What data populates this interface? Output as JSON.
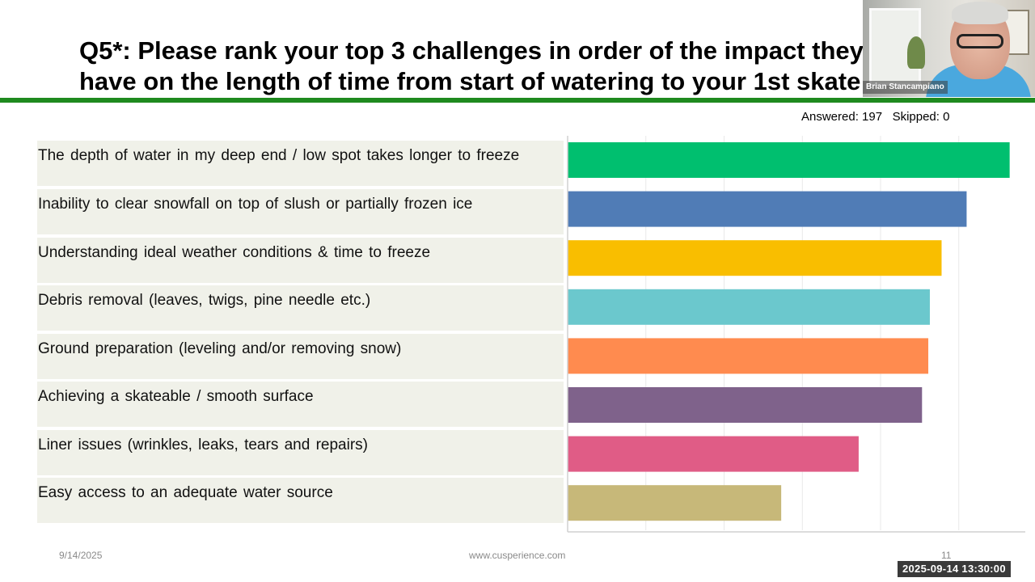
{
  "slide": {
    "title_line1": "Q5*: Please rank your top 3 challenges in order of the impact they",
    "title_line2": "have on the length of time from start of watering to your 1st skate",
    "answered": "Answered: 197   Skipped: 0",
    "footer_date": "9/14/2025",
    "footer_url": "www.cusperience.com",
    "page_number": "11",
    "timestamp": "2025-09-14  13:30:00"
  },
  "video": {
    "participant_name": "Brian Stancampiano"
  },
  "colors": {
    "rule": "#1f8a1f",
    "bars": [
      "#00bf6f",
      "#507cb6",
      "#f9be00",
      "#6bc8cd",
      "#ff8b4f",
      "#7f628b",
      "#e05c86",
      "#c7b879"
    ]
  },
  "chart_data": {
    "type": "bar",
    "orientation": "horizontal",
    "categories": [
      "The depth of water in my deep end / low spot takes longer to freeze",
      "Inability to clear snowfall on top of slush or partially frozen ice",
      "Understanding ideal weather conditions & time to freeze",
      "Debris removal (leaves, twigs, pine needle etc.)",
      "Ground preparation (leveling and/or removing snow)",
      "Achieving a skateable / smooth surface",
      "Liner issues (wrinkles, leaks, tears and repairs)",
      "Easy access to an adequate water source"
    ],
    "values": [
      5.65,
      5.1,
      4.78,
      4.63,
      4.61,
      4.53,
      3.72,
      2.73
    ],
    "xlim": [
      0,
      5.85
    ],
    "gridlines": [
      1,
      2,
      3,
      4,
      5
    ],
    "grid": true,
    "title": "",
    "xlabel": "",
    "ylabel": ""
  }
}
